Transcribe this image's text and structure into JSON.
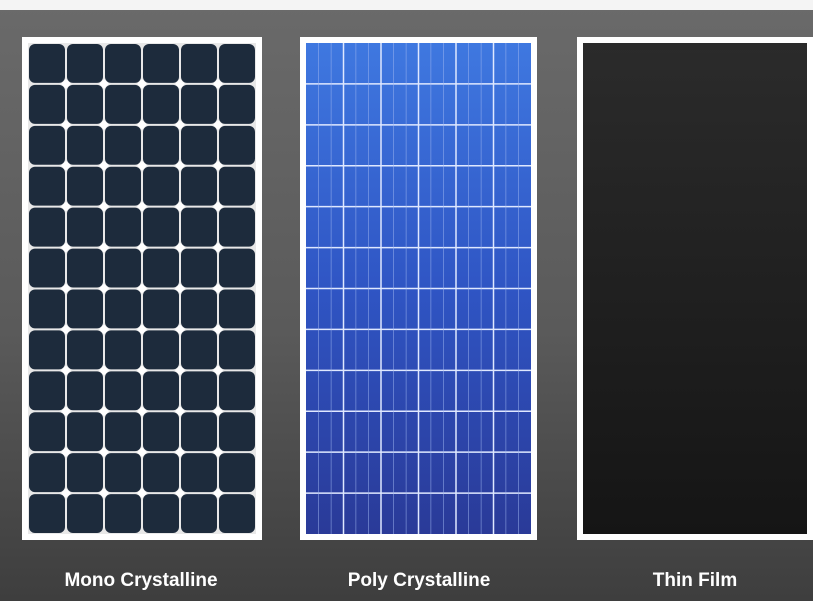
{
  "panels": [
    {
      "label": "Mono Crystalline"
    },
    {
      "label": "Poly Crystalline"
    },
    {
      "label": "Thin Film"
    }
  ]
}
